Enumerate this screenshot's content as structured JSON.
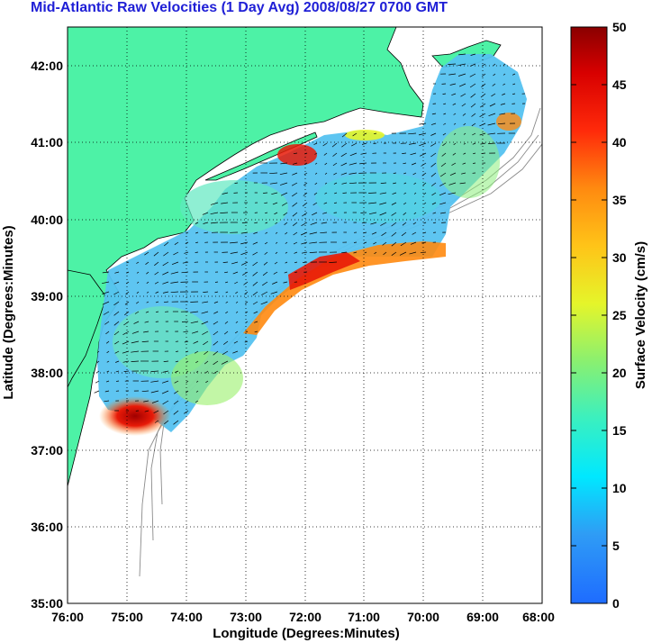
{
  "title": "Mid-Atlantic Raw Velocities (1 Day Avg) 2008/08/27 0700 GMT",
  "map": {
    "xlabel": "Longitude (Degrees:Minutes)",
    "ylabel": "Latitude (Degrees:Minutes)",
    "lon_ticks": [
      "76:00",
      "75:00",
      "74:00",
      "73:00",
      "72:00",
      "71:00",
      "70:00",
      "69:00",
      "68:00"
    ],
    "lat_ticks": [
      "42:00",
      "41:00",
      "40:00",
      "39:00",
      "38:00",
      "37:00",
      "36:00",
      "35:00"
    ],
    "lon_range": [
      -76,
      -68
    ],
    "lat_range": [
      35,
      42.5
    ],
    "land_color": "#4df2a6",
    "grid": true
  },
  "colorbar": {
    "label": "Surface Velocity (cm/s)",
    "ticks": [
      "0",
      "5",
      "10",
      "15",
      "20",
      "25",
      "30",
      "35",
      "40",
      "45",
      "50"
    ],
    "range": [
      0,
      50
    ],
    "colormap": "jet"
  }
}
